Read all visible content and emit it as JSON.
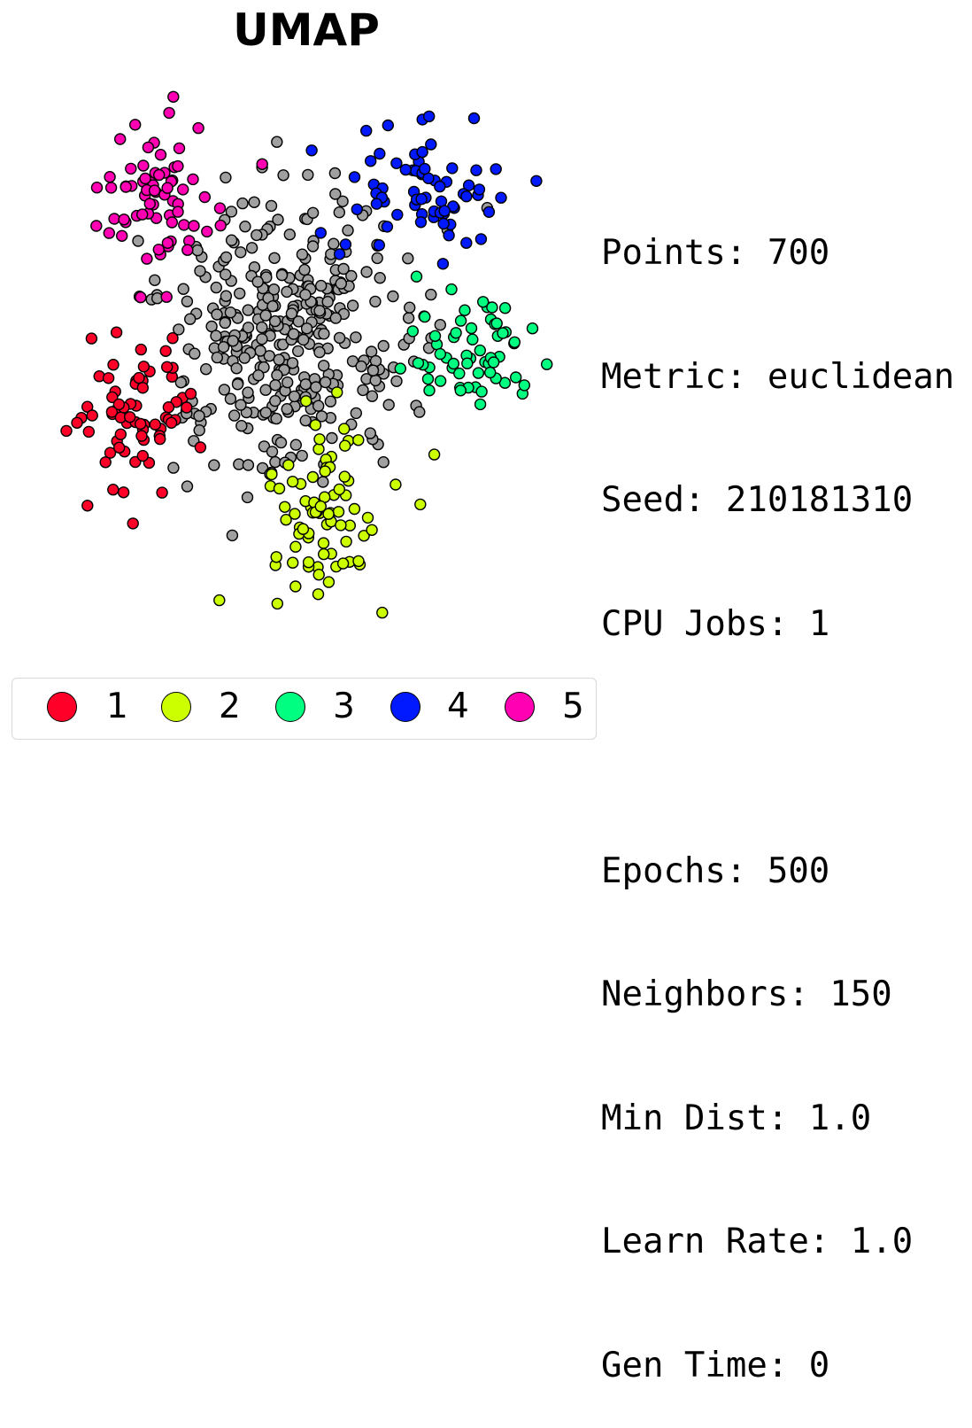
{
  "chart_data": {
    "type": "scatter",
    "title": "UMAP",
    "xlabel": "",
    "ylabel": "",
    "grid": false,
    "axes_visible": false,
    "xlim": [
      -8,
      8
    ],
    "ylim": [
      -9,
      9
    ],
    "legend_position": "bottom",
    "point_edge_color": "#000000",
    "unlabeled_color": "#a0a0a0",
    "series": [
      {
        "name": "1",
        "color": "#ff0029"
      },
      {
        "name": "2",
        "color": "#ccff00"
      },
      {
        "name": "3",
        "color": "#00ff80"
      },
      {
        "name": "4",
        "color": "#0019ff"
      },
      {
        "name": "5",
        "color": "#ff00b3"
      }
    ],
    "clusters": [
      {
        "label": "1",
        "cx": -5.3,
        "cy": -2.2,
        "sx": 1.2,
        "sy": 1.7,
        "n": 70
      },
      {
        "label": "2",
        "cx": 0.5,
        "cy": -5.2,
        "sx": 1.2,
        "sy": 1.7,
        "n": 80
      },
      {
        "label": "3",
        "cx": 4.8,
        "cy": 0.2,
        "sx": 1.3,
        "sy": 1.4,
        "n": 60
      },
      {
        "label": "4",
        "cx": 3.3,
        "cy": 5.3,
        "sx": 1.5,
        "sy": 1.3,
        "n": 70
      },
      {
        "label": "5",
        "cx": -4.3,
        "cy": 5.0,
        "sx": 1.4,
        "sy": 1.8,
        "n": 70
      },
      {
        "label": "",
        "cx": -0.5,
        "cy": 0.8,
        "sx": 2.3,
        "sy": 2.6,
        "n": 350
      }
    ]
  },
  "stats": {
    "points": "Points: 700",
    "metric": "Metric: euclidean",
    "seed": "Seed: 210181310",
    "cpu_jobs": "CPU Jobs: 1",
    "epochs": "Epochs: 500",
    "neighbors": "Neighbors: 150",
    "min_dist": "Min Dist: 1.0",
    "learn_rate": "Learn Rate: 1.0",
    "gen_time": "Gen Time: 0"
  }
}
